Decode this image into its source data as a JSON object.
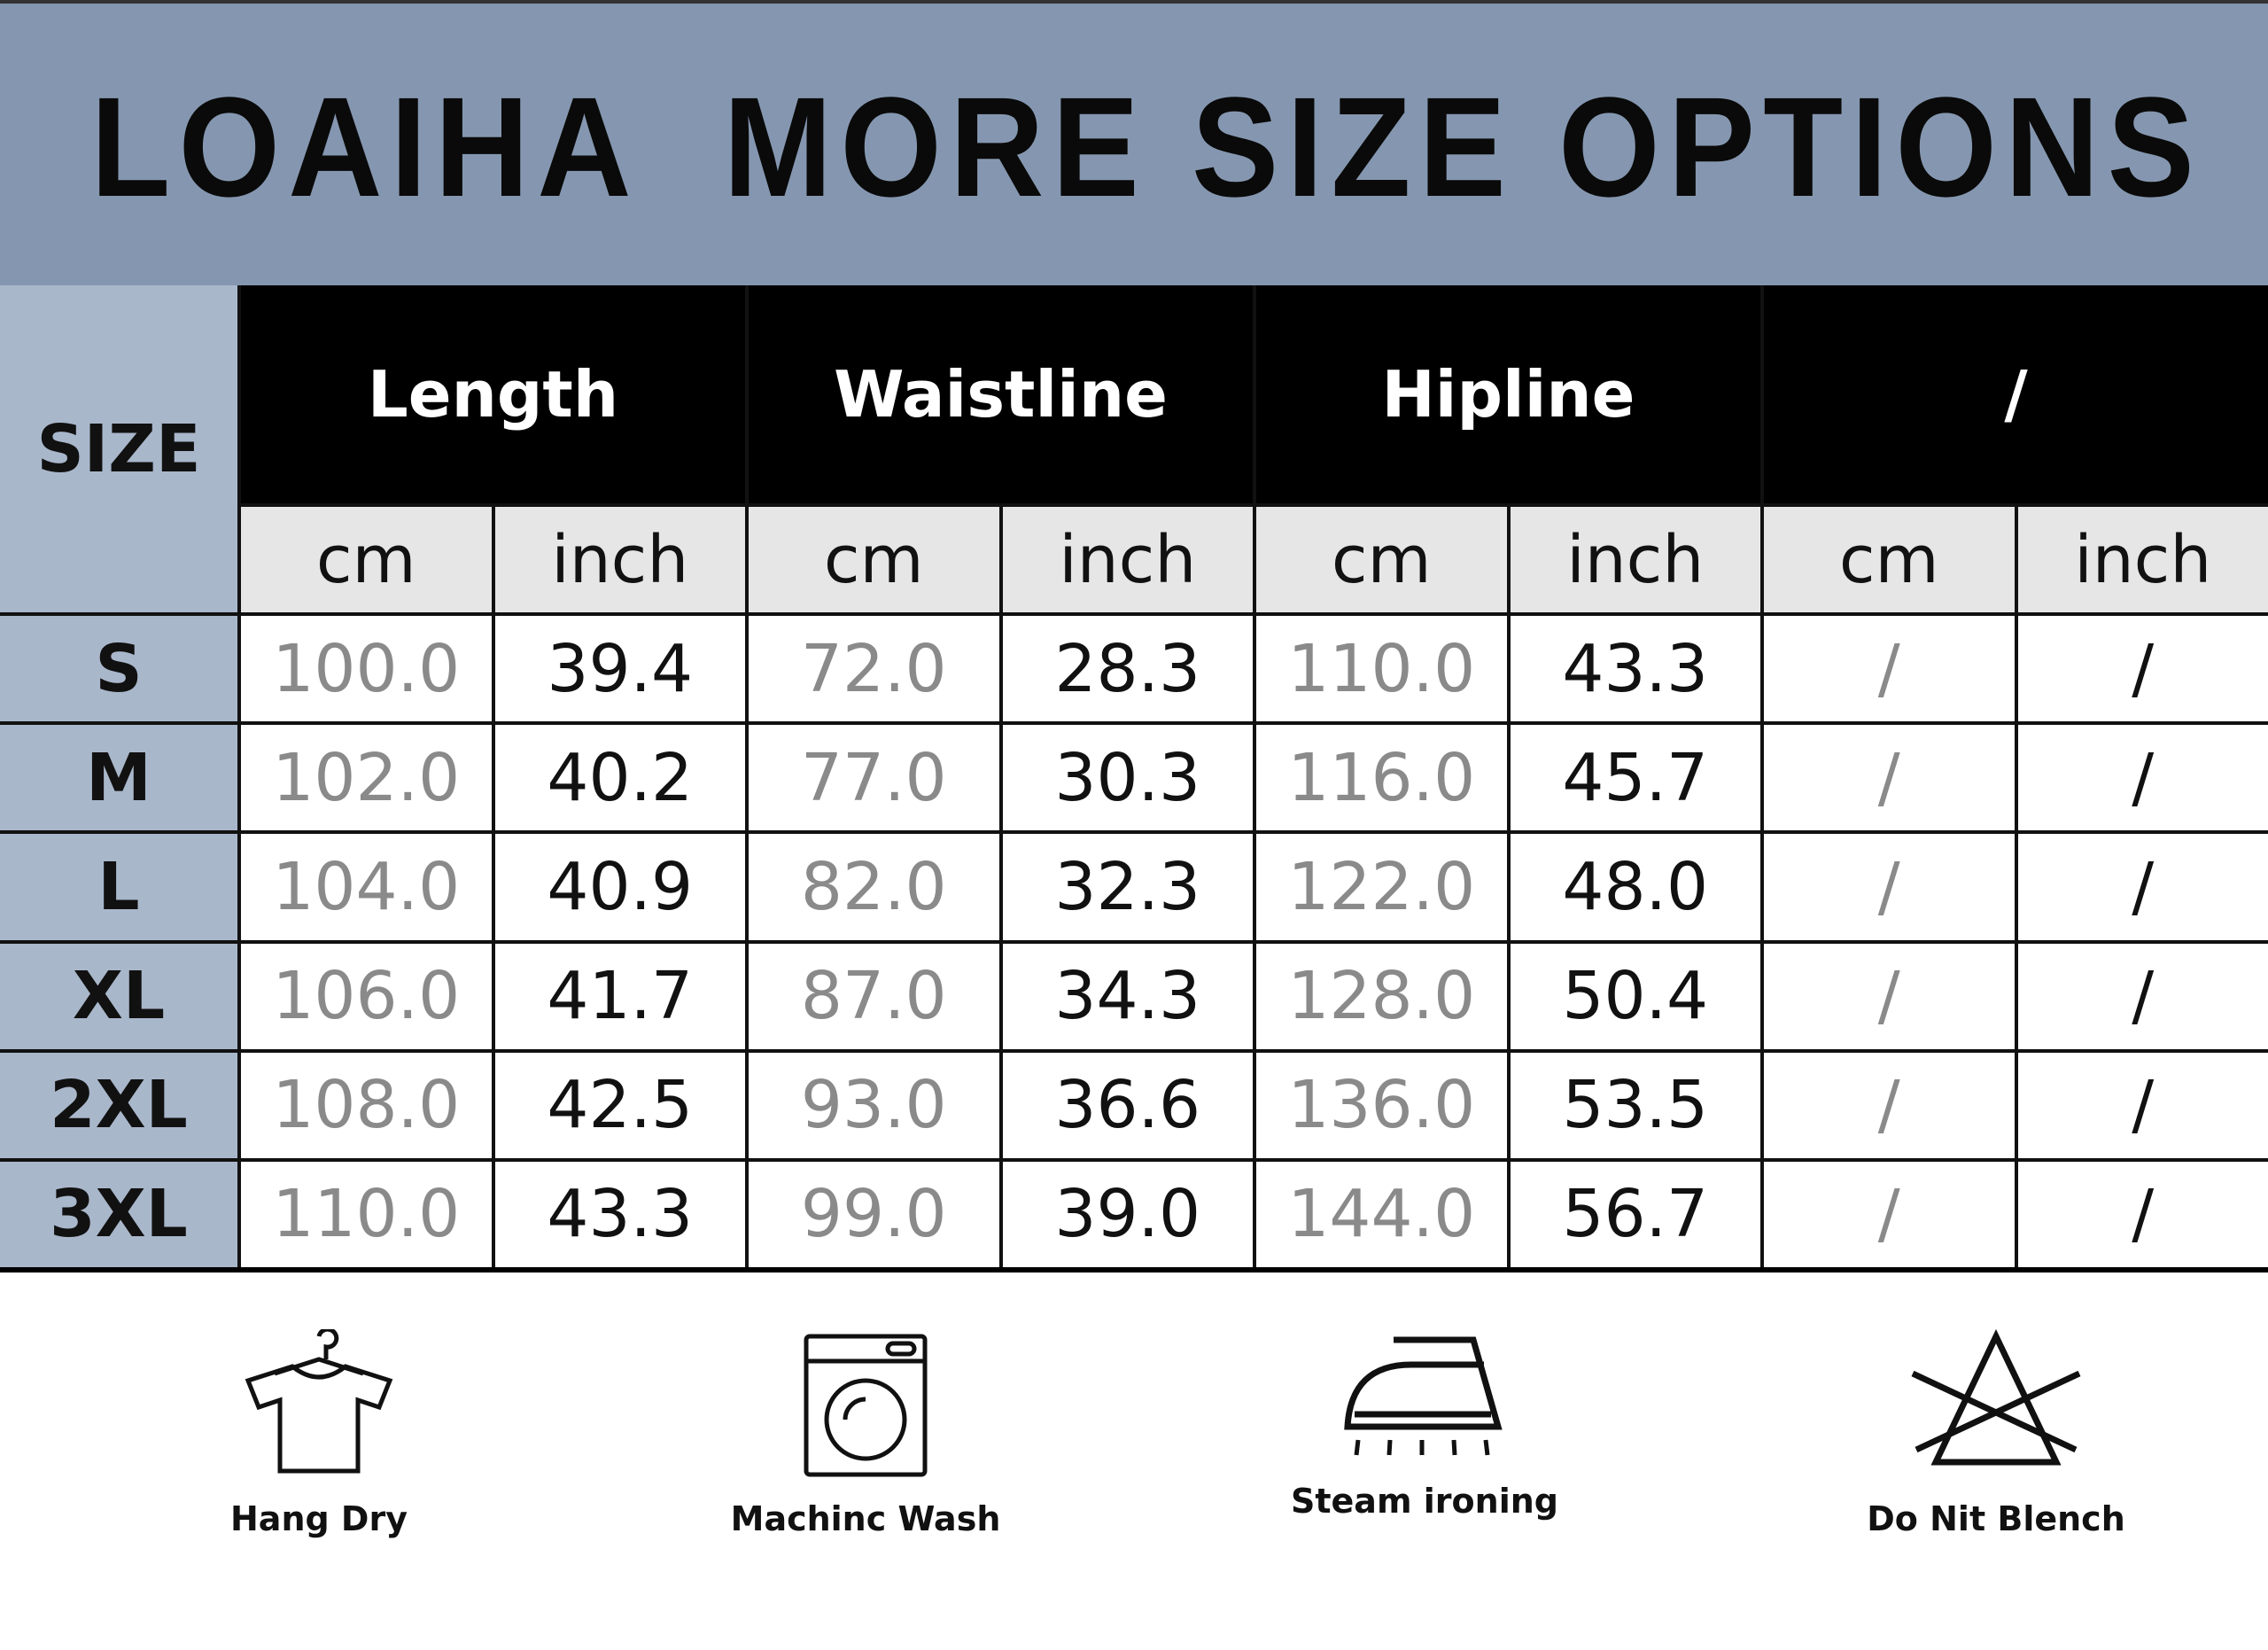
{
  "header": {
    "title": "LOAIHA  MORE SIZE OPTIONS"
  },
  "table": {
    "size_label": "SIZE",
    "groups": [
      "Length",
      "Waistline",
      "Hipline",
      "/"
    ],
    "units": [
      "cm",
      "inch",
      "cm",
      "inch",
      "cm",
      "inch",
      "cm",
      "inch"
    ],
    "rows": [
      [
        "S",
        "100.0",
        "39.4",
        "72.0",
        "28.3",
        "110.0",
        "43.3",
        "/",
        "/"
      ],
      [
        "M",
        "102.0",
        "40.2",
        "77.0",
        "30.3",
        "116.0",
        "45.7",
        "/",
        "/"
      ],
      [
        "L",
        "104.0",
        "40.9",
        "82.0",
        "32.3",
        "122.0",
        "48.0",
        "/",
        "/"
      ],
      [
        "XL",
        "106.0",
        "41.7",
        "87.0",
        "34.3",
        "128.0",
        "50.4",
        "/",
        "/"
      ],
      [
        "2XL",
        "108.0",
        "42.5",
        "93.0",
        "36.6",
        "136.0",
        "53.5",
        "/",
        "/"
      ],
      [
        "3XL",
        "110.0",
        "43.3",
        "99.0",
        "39.0",
        "144.0",
        "56.7",
        "/",
        "/"
      ]
    ]
  },
  "care": [
    "Hang Dry",
    "Machinc Wash",
    "Steam ironing",
    "Do Nit Blench"
  ]
}
